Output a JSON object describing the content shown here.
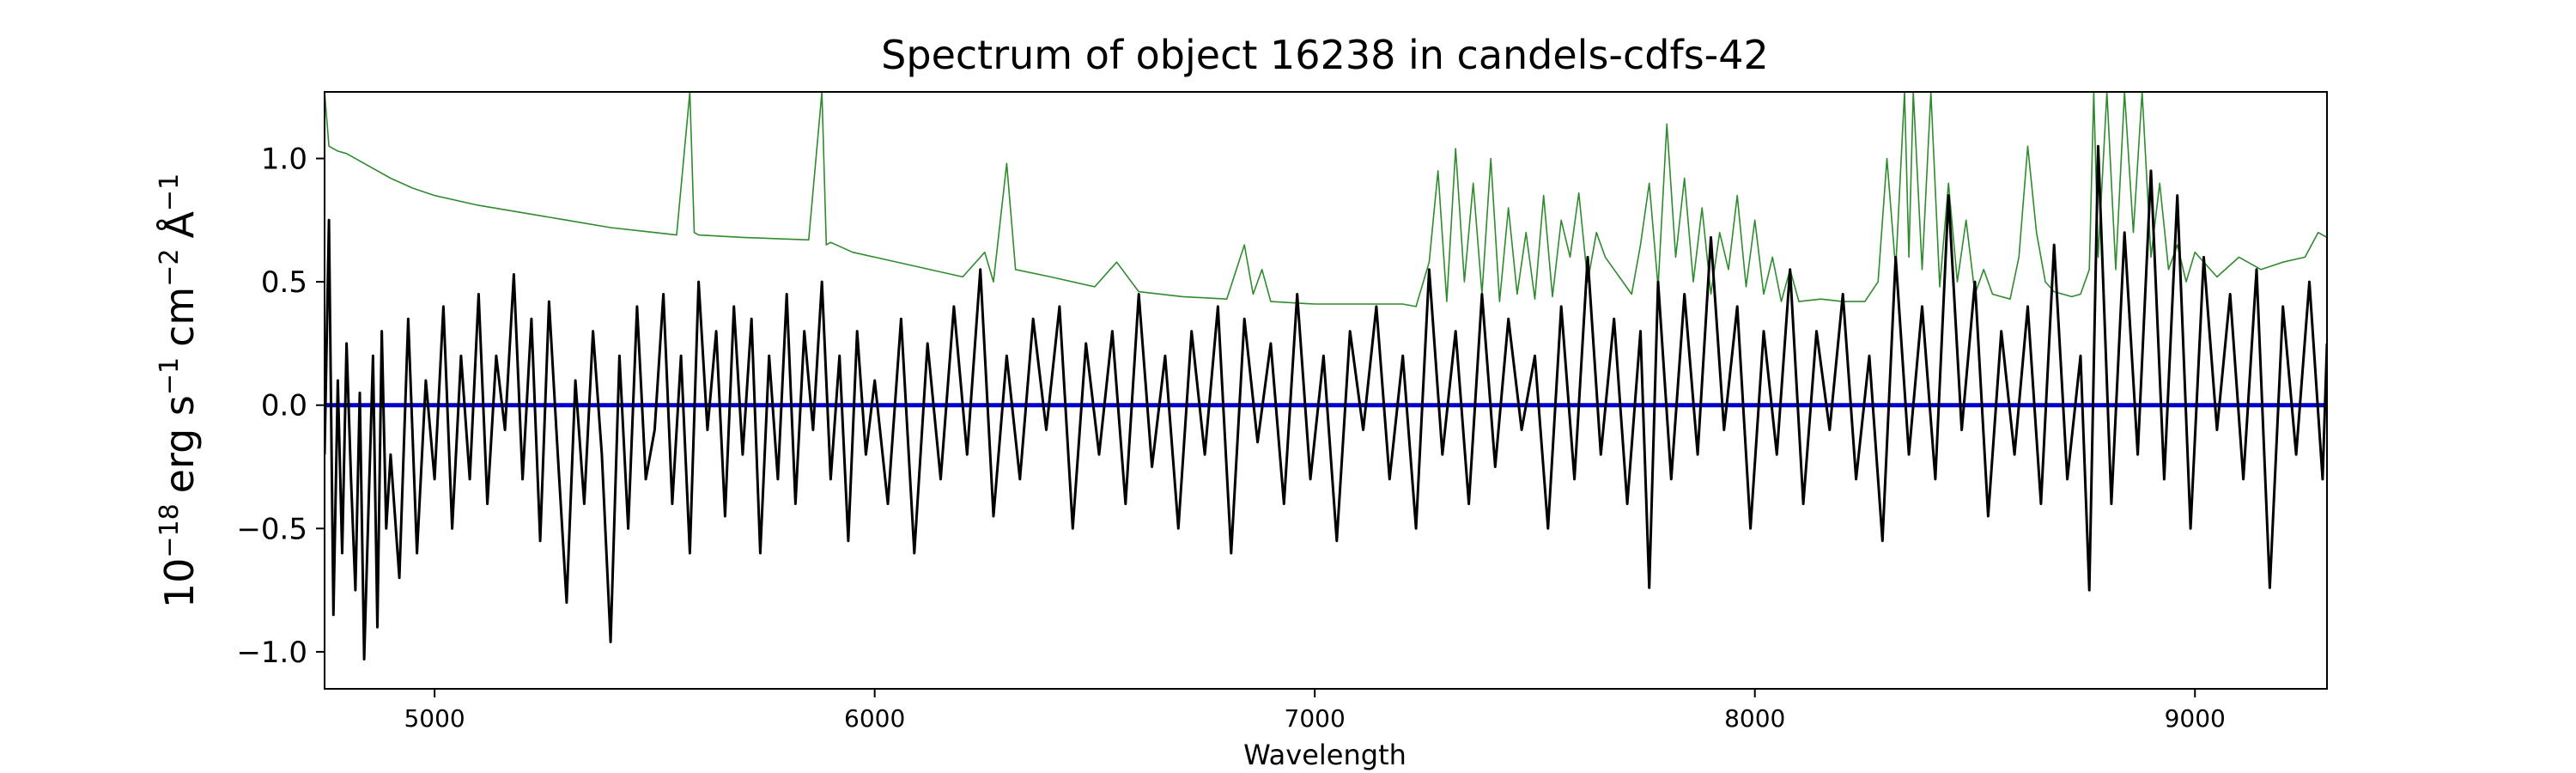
{
  "chart_data": {
    "type": "line",
    "title": "Spectrum of object 16238 in candels-cdfs-42",
    "xlabel": "Wavelength",
    "ylabel": {
      "base": "10",
      "base_exp": "−18",
      "unit1": "erg s",
      "unit1_exp": "−1",
      "unit2": "cm",
      "unit2_exp": "−2",
      "unit3": "Å",
      "unit3_exp": "−1"
    },
    "xlim": [
      4750,
      9300
    ],
    "ylim": [
      -1.15,
      1.27
    ],
    "xticks": [
      5000,
      6000,
      7000,
      8000,
      9000
    ],
    "xtick_labels": [
      "5000",
      "6000",
      "7000",
      "8000",
      "9000"
    ],
    "yticks": [
      -1.0,
      -0.5,
      0.0,
      0.5,
      1.0
    ],
    "ytick_labels": [
      "−1.0",
      "−0.5",
      "0.0",
      "0.5",
      "1.0"
    ],
    "grid": false,
    "series": [
      {
        "role": "flux",
        "color": "#000000",
        "x": [
          4750,
          4760,
          4770,
          4780,
          4790,
          4800,
          4810,
          4820,
          4830,
          4840,
          4850,
          4860,
          4870,
          4880,
          4890,
          4900,
          4920,
          4940,
          4960,
          4980,
          5000,
          5020,
          5040,
          5060,
          5080,
          5100,
          5120,
          5140,
          5160,
          5180,
          5200,
          5220,
          5240,
          5260,
          5280,
          5300,
          5320,
          5340,
          5360,
          5380,
          5400,
          5420,
          5440,
          5460,
          5480,
          5500,
          5520,
          5540,
          5560,
          5580,
          5600,
          5620,
          5640,
          5660,
          5680,
          5700,
          5720,
          5740,
          5760,
          5780,
          5800,
          5820,
          5840,
          5860,
          5880,
          5900,
          5920,
          5940,
          5960,
          5980,
          6000,
          6030,
          6060,
          6090,
          6120,
          6150,
          6180,
          6210,
          6240,
          6270,
          6300,
          6330,
          6360,
          6390,
          6420,
          6450,
          6480,
          6510,
          6540,
          6570,
          6600,
          6630,
          6660,
          6690,
          6720,
          6750,
          6780,
          6810,
          6840,
          6870,
          6900,
          6930,
          6960,
          6990,
          7020,
          7050,
          7080,
          7110,
          7140,
          7170,
          7200,
          7230,
          7260,
          7290,
          7320,
          7350,
          7380,
          7410,
          7440,
          7470,
          7500,
          7530,
          7560,
          7590,
          7620,
          7650,
          7680,
          7710,
          7740,
          7760,
          7780,
          7810,
          7840,
          7870,
          7900,
          7930,
          7960,
          7990,
          8020,
          8050,
          8080,
          8110,
          8140,
          8170,
          8200,
          8230,
          8260,
          8290,
          8320,
          8350,
          8380,
          8410,
          8440,
          8470,
          8500,
          8530,
          8560,
          8590,
          8620,
          8650,
          8680,
          8710,
          8740,
          8760,
          8780,
          8810,
          8840,
          8870,
          8900,
          8930,
          8960,
          8990,
          9020,
          9050,
          9080,
          9110,
          9140,
          9170,
          9200,
          9230,
          9260,
          9290,
          9300
        ],
        "y": [
          -0.2,
          0.75,
          -0.85,
          0.1,
          -0.6,
          0.25,
          -0.3,
          -0.75,
          0.05,
          -1.03,
          -0.4,
          0.2,
          -0.9,
          0.3,
          -0.5,
          -0.2,
          -0.7,
          0.35,
          -0.6,
          0.1,
          -0.3,
          0.4,
          -0.5,
          0.2,
          -0.3,
          0.45,
          -0.4,
          0.2,
          -0.1,
          0.53,
          -0.3,
          0.35,
          -0.55,
          0.42,
          -0.2,
          -0.8,
          0.1,
          -0.4,
          0.3,
          -0.2,
          -0.96,
          0.2,
          -0.5,
          0.4,
          -0.3,
          -0.1,
          0.45,
          -0.4,
          0.2,
          -0.6,
          0.5,
          -0.1,
          0.3,
          -0.45,
          0.4,
          -0.2,
          0.35,
          -0.6,
          0.2,
          -0.3,
          0.45,
          -0.4,
          0.3,
          -0.1,
          0.5,
          -0.3,
          0.2,
          -0.55,
          0.3,
          -0.2,
          0.1,
          -0.4,
          0.35,
          -0.6,
          0.25,
          -0.3,
          0.4,
          -0.2,
          0.55,
          -0.45,
          0.2,
          -0.3,
          0.35,
          -0.1,
          0.4,
          -0.5,
          0.25,
          -0.2,
          0.3,
          -0.4,
          0.45,
          -0.25,
          0.2,
          -0.5,
          0.3,
          -0.2,
          0.4,
          -0.6,
          0.35,
          -0.15,
          0.25,
          -0.4,
          0.45,
          -0.3,
          0.2,
          -0.55,
          0.3,
          -0.1,
          0.4,
          -0.3,
          0.2,
          -0.5,
          0.55,
          -0.2,
          0.3,
          -0.4,
          0.45,
          -0.25,
          0.35,
          -0.1,
          0.2,
          -0.5,
          0.4,
          -0.3,
          0.6,
          -0.2,
          0.35,
          -0.4,
          0.3,
          -0.74,
          0.5,
          -0.3,
          0.45,
          -0.2,
          0.68,
          -0.1,
          0.4,
          -0.5,
          0.3,
          -0.2,
          0.55,
          -0.4,
          0.3,
          -0.1,
          0.45,
          -0.3,
          0.2,
          -0.55,
          0.6,
          -0.2,
          0.4,
          -0.3,
          0.85,
          -0.1,
          0.5,
          -0.45,
          0.3,
          -0.2,
          0.4,
          -0.4,
          0.65,
          -0.3,
          0.2,
          -0.75,
          1.05,
          -0.4,
          0.7,
          -0.2,
          0.95,
          -0.3,
          0.85,
          -0.5,
          0.6,
          -0.1,
          0.45,
          -0.3,
          0.55,
          -0.74,
          0.4,
          -0.2,
          0.5,
          -0.3,
          0.25
        ]
      },
      {
        "role": "error",
        "color": "#2e8b2e",
        "x": [
          4750,
          4760,
          4780,
          4800,
          4850,
          4900,
          4950,
          5000,
          5100,
          5200,
          5300,
          5400,
          5500,
          5550,
          5580,
          5590,
          5600,
          5700,
          5850,
          5880,
          5890,
          5900,
          5950,
          6000,
          6100,
          6200,
          6250,
          6270,
          6300,
          6320,
          6400,
          6500,
          6550,
          6600,
          6700,
          6800,
          6840,
          6860,
          6880,
          6900,
          7000,
          7100,
          7200,
          7230,
          7260,
          7280,
          7300,
          7320,
          7340,
          7360,
          7380,
          7400,
          7420,
          7440,
          7460,
          7480,
          7500,
          7520,
          7540,
          7560,
          7580,
          7600,
          7620,
          7640,
          7660,
          7680,
          7700,
          7720,
          7740,
          7760,
          7780,
          7800,
          7820,
          7840,
          7860,
          7880,
          7900,
          7920,
          7940,
          7960,
          7980,
          8000,
          8020,
          8040,
          8060,
          8080,
          8100,
          8150,
          8200,
          8250,
          8280,
          8300,
          8320,
          8340,
          8350,
          8360,
          8380,
          8400,
          8420,
          8440,
          8460,
          8480,
          8500,
          8520,
          8540,
          8560,
          8580,
          8600,
          8620,
          8640,
          8660,
          8680,
          8700,
          8720,
          8740,
          8760,
          8770,
          8780,
          8800,
          8820,
          8840,
          8860,
          8880,
          8900,
          8920,
          8940,
          8960,
          8980,
          9000,
          9050,
          9100,
          9150,
          9200,
          9250,
          9280,
          9300
        ],
        "y": [
          1.27,
          1.05,
          1.03,
          1.02,
          0.97,
          0.92,
          0.88,
          0.85,
          0.81,
          0.78,
          0.75,
          0.72,
          0.7,
          0.69,
          1.27,
          0.7,
          0.69,
          0.68,
          0.67,
          1.27,
          0.65,
          0.66,
          0.62,
          0.6,
          0.56,
          0.52,
          0.62,
          0.5,
          0.98,
          0.55,
          0.52,
          0.48,
          0.58,
          0.46,
          0.44,
          0.43,
          0.65,
          0.45,
          0.55,
          0.42,
          0.41,
          0.41,
          0.41,
          0.4,
          0.58,
          0.95,
          0.42,
          1.04,
          0.5,
          0.9,
          0.45,
          1.0,
          0.42,
          0.8,
          0.45,
          0.7,
          0.43,
          0.85,
          0.44,
          0.75,
          0.6,
          0.86,
          0.5,
          0.7,
          0.6,
          0.55,
          0.5,
          0.45,
          0.65,
          0.9,
          0.48,
          1.14,
          0.6,
          0.92,
          0.5,
          0.8,
          0.45,
          0.7,
          0.55,
          0.85,
          0.48,
          0.75,
          0.45,
          0.6,
          0.42,
          0.55,
          0.42,
          0.43,
          0.42,
          0.42,
          0.5,
          1.0,
          0.55,
          1.27,
          0.6,
          1.27,
          0.55,
          1.27,
          0.48,
          0.9,
          0.5,
          0.75,
          0.45,
          0.55,
          0.45,
          0.44,
          0.43,
          0.6,
          1.05,
          0.7,
          0.5,
          0.46,
          0.45,
          0.44,
          0.45,
          0.55,
          1.27,
          0.6,
          1.27,
          0.55,
          1.27,
          0.7,
          1.27,
          0.6,
          0.9,
          0.55,
          0.65,
          0.5,
          0.62,
          0.52,
          0.6,
          0.55,
          0.58,
          0.6,
          0.7,
          0.68
        ]
      },
      {
        "role": "model",
        "color": "#0000cc",
        "x": [
          4750,
          9300
        ],
        "y": [
          0.0,
          0.0
        ]
      }
    ]
  }
}
